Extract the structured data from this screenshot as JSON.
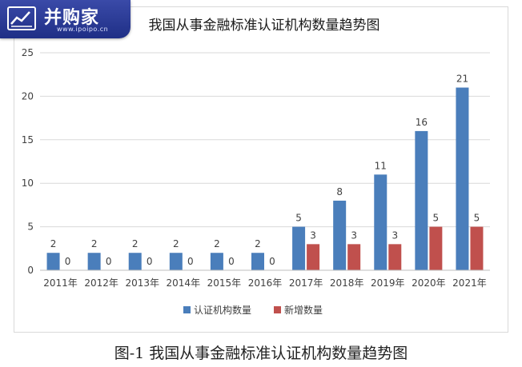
{
  "watermark": {
    "brand": "并购家",
    "url": "www.ipoipo.cn"
  },
  "caption": "图-1 我国从事金融标准认证机构数量趋势图",
  "colors": {
    "series1": "#4a7ebb",
    "series2": "#c0504d",
    "grid": "#d9d9d9",
    "axis_text": "#404040"
  },
  "chart_data": {
    "type": "bar",
    "title": "我国从事金融标准认证机构数量趋势图",
    "xlabel": "",
    "ylabel": "",
    "categories": [
      "2011年",
      "2012年",
      "2013年",
      "2014年",
      "2015年",
      "2016年",
      "2017年",
      "2018年",
      "2019年",
      "2020年",
      "2021年"
    ],
    "series": [
      {
        "name": "认证机构数量",
        "values": [
          2,
          2,
          2,
          2,
          2,
          2,
          5,
          8,
          11,
          16,
          21
        ]
      },
      {
        "name": "新增数量",
        "values": [
          0,
          0,
          0,
          0,
          0,
          0,
          3,
          3,
          3,
          5,
          5
        ]
      }
    ],
    "ylim": [
      0,
      25
    ],
    "yticks": [
      0,
      5,
      10,
      15,
      20,
      25
    ],
    "grid": true,
    "data_labels": true,
    "legend_position": "bottom"
  }
}
